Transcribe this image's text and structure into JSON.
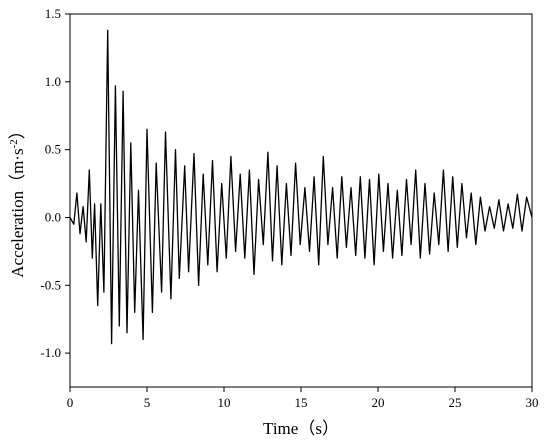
{
  "chart_data": {
    "type": "line",
    "title": "",
    "xlabel": "Time（s）",
    "ylabel_parts": {
      "text": "Acceleration（m·s",
      "superscript": "-2",
      "suffix": "）"
    },
    "xlim": [
      0,
      30
    ],
    "ylim": [
      -1.25,
      1.5
    ],
    "xticks": [
      0,
      5,
      10,
      15,
      20,
      25,
      30
    ],
    "xtick_labels": [
      "0",
      "5",
      "10",
      "15",
      "20",
      "25",
      "30"
    ],
    "yticks": [
      -1.0,
      -0.5,
      0.0,
      0.5,
      1.0,
      1.5
    ],
    "ytick_labels": [
      "-1.0",
      "-0.5",
      "0.0",
      "0.5",
      "1.0",
      "1.5"
    ],
    "grid": false,
    "legend": false,
    "line_color": "#000000",
    "series": [
      {
        "x": [
          0,
          0.25,
          0.45,
          0.65,
          0.85,
          1.05,
          1.25,
          1.45,
          1.6,
          1.8,
          2.0,
          2.2,
          2.45,
          2.7,
          2.95,
          3.2,
          3.45,
          3.7,
          3.95,
          4.2,
          4.45,
          4.75,
          5.0,
          5.35,
          5.6,
          5.95,
          6.2,
          6.55,
          6.85,
          7.1,
          7.45,
          7.7,
          8.05,
          8.35,
          8.65,
          8.95,
          9.25,
          9.55,
          9.85,
          10.15,
          10.45,
          10.75,
          11.05,
          11.35,
          11.65,
          11.95,
          12.25,
          12.55,
          12.85,
          13.15,
          13.45,
          13.75,
          14.05,
          14.35,
          14.65,
          14.95,
          15.25,
          15.55,
          15.85,
          16.15,
          16.45,
          16.75,
          17.05,
          17.35,
          17.65,
          17.95,
          18.25,
          18.55,
          18.85,
          19.15,
          19.45,
          19.75,
          20.05,
          20.35,
          20.65,
          20.95,
          21.25,
          21.55,
          21.85,
          22.15,
          22.45,
          22.75,
          23.05,
          23.35,
          23.65,
          23.95,
          24.25,
          24.55,
          24.85,
          25.15,
          25.45,
          25.75,
          26.05,
          26.35,
          26.65,
          26.95,
          27.25,
          27.55,
          27.85,
          28.15,
          28.45,
          28.75,
          29.05,
          29.35,
          29.65,
          30.0
        ],
        "y": [
          0.0,
          -0.05,
          0.18,
          -0.12,
          0.08,
          -0.18,
          0.35,
          -0.3,
          0.1,
          -0.65,
          0.1,
          -0.55,
          1.38,
          -0.93,
          0.97,
          -0.8,
          0.93,
          -0.85,
          0.55,
          -0.7,
          0.2,
          -0.9,
          0.65,
          -0.7,
          0.4,
          -0.55,
          0.63,
          -0.6,
          0.5,
          -0.45,
          0.38,
          -0.4,
          0.47,
          -0.5,
          0.32,
          -0.35,
          0.42,
          -0.4,
          0.25,
          -0.3,
          0.45,
          -0.25,
          0.32,
          -0.3,
          0.35,
          -0.42,
          0.28,
          -0.2,
          0.48,
          -0.32,
          0.38,
          -0.35,
          0.25,
          -0.28,
          0.4,
          -0.2,
          0.22,
          -0.25,
          0.3,
          -0.35,
          0.45,
          -0.2,
          0.22,
          -0.3,
          0.3,
          -0.22,
          0.22,
          -0.28,
          0.3,
          -0.3,
          0.28,
          -0.35,
          0.32,
          -0.25,
          0.25,
          -0.3,
          0.2,
          -0.28,
          0.28,
          -0.2,
          0.35,
          -0.3,
          0.25,
          -0.27,
          0.18,
          -0.2,
          0.35,
          -0.25,
          0.3,
          -0.22,
          0.25,
          -0.15,
          0.18,
          -0.2,
          0.15,
          -0.1,
          0.08,
          -0.08,
          0.13,
          -0.1,
          0.1,
          -0.08,
          0.17,
          -0.1,
          0.15,
          0.0
        ]
      }
    ]
  }
}
